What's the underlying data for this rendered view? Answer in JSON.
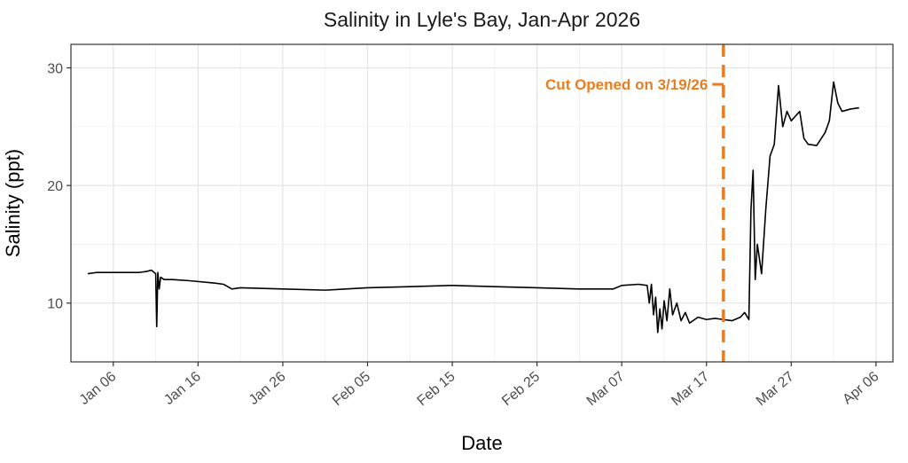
{
  "chart_data": {
    "type": "line",
    "title": "Salinity in Lyle's Bay, Jan-Apr 2026",
    "xlabel": "Date",
    "ylabel": "Salinity (ppt)",
    "x_axis": "date",
    "xlim": [
      "2026-01-01",
      "2026-04-08"
    ],
    "ylim": [
      5,
      32
    ],
    "x_ticks": [
      {
        "date": "2026-01-06",
        "label": "Jan 06"
      },
      {
        "date": "2026-01-16",
        "label": "Jan 16"
      },
      {
        "date": "2026-01-26",
        "label": "Jan 26"
      },
      {
        "date": "2026-02-05",
        "label": "Feb 05"
      },
      {
        "date": "2026-02-15",
        "label": "Feb 15"
      },
      {
        "date": "2026-02-25",
        "label": "Feb 25"
      },
      {
        "date": "2026-03-07",
        "label": "Mar 07"
      },
      {
        "date": "2026-03-17",
        "label": "Mar 17"
      },
      {
        "date": "2026-03-27",
        "label": "Mar 27"
      },
      {
        "date": "2026-04-06",
        "label": "Apr 06"
      }
    ],
    "y_ticks": [
      10,
      20,
      30
    ],
    "grid": true,
    "line_color": "#000000",
    "series": [
      {
        "points": [
          [
            "2026-01-03",
            12.5
          ],
          [
            "2026-01-04",
            12.6
          ],
          [
            "2026-01-06",
            12.6
          ],
          [
            "2026-01-08",
            12.6
          ],
          [
            "2026-01-09",
            12.6
          ],
          [
            "2026-01-10",
            12.7
          ],
          [
            "2026-01-10 12:00",
            12.8
          ],
          [
            "2026-01-11",
            12.5
          ],
          [
            "2026-01-11 03:00",
            8.0
          ],
          [
            "2026-01-11 06:00",
            12.6
          ],
          [
            "2026-01-11 10:00",
            11.2
          ],
          [
            "2026-01-11 14:00",
            12.2
          ],
          [
            "2026-01-12",
            12.0
          ],
          [
            "2026-01-13",
            12.0
          ],
          [
            "2026-01-15",
            11.9
          ],
          [
            "2026-01-18",
            11.7
          ],
          [
            "2026-01-19",
            11.6
          ],
          [
            "2026-01-20",
            11.2
          ],
          [
            "2026-01-21",
            11.3
          ],
          [
            "2026-01-26",
            11.2
          ],
          [
            "2026-01-31",
            11.1
          ],
          [
            "2026-02-05",
            11.3
          ],
          [
            "2026-02-10",
            11.4
          ],
          [
            "2026-02-15",
            11.5
          ],
          [
            "2026-02-20",
            11.4
          ],
          [
            "2026-02-25",
            11.3
          ],
          [
            "2026-03-02",
            11.2
          ],
          [
            "2026-03-06",
            11.2
          ],
          [
            "2026-03-07",
            11.5
          ],
          [
            "2026-03-09",
            11.6
          ],
          [
            "2026-03-10",
            11.5
          ],
          [
            "2026-03-10 06:00",
            10.0
          ],
          [
            "2026-03-10 12:00",
            11.6
          ],
          [
            "2026-03-10 18:00",
            9.0
          ],
          [
            "2026-03-11",
            10.5
          ],
          [
            "2026-03-11 06:00",
            7.5
          ],
          [
            "2026-03-11 12:00",
            9.5
          ],
          [
            "2026-03-11 18:00",
            7.8
          ],
          [
            "2026-03-12",
            10.2
          ],
          [
            "2026-03-12 08:00",
            8.5
          ],
          [
            "2026-03-12 16:00",
            11.2
          ],
          [
            "2026-03-13",
            9.0
          ],
          [
            "2026-03-13 12:00",
            10.0
          ],
          [
            "2026-03-14",
            8.5
          ],
          [
            "2026-03-14 12:00",
            9.2
          ],
          [
            "2026-03-15",
            8.3
          ],
          [
            "2026-03-16",
            8.8
          ],
          [
            "2026-03-17",
            8.6
          ],
          [
            "2026-03-18",
            8.7
          ],
          [
            "2026-03-19",
            8.6
          ],
          [
            "2026-03-20",
            8.5
          ],
          [
            "2026-03-21",
            8.8
          ],
          [
            "2026-03-21 12:00",
            9.2
          ],
          [
            "2026-03-22",
            8.6
          ],
          [
            "2026-03-22 06:00",
            18.0
          ],
          [
            "2026-03-22 12:00",
            21.3
          ],
          [
            "2026-03-22 18:00",
            12.0
          ],
          [
            "2026-03-23",
            15.0
          ],
          [
            "2026-03-23 12:00",
            12.5
          ],
          [
            "2026-03-24",
            18.0
          ],
          [
            "2026-03-24 12:00",
            22.5
          ],
          [
            "2026-03-25",
            23.5
          ],
          [
            "2026-03-25 12:00",
            28.5
          ],
          [
            "2026-03-26",
            25.0
          ],
          [
            "2026-03-26 12:00",
            26.3
          ],
          [
            "2026-03-27",
            25.5
          ],
          [
            "2026-03-28",
            26.3
          ],
          [
            "2026-03-28 12:00",
            24.0
          ],
          [
            "2026-03-29",
            23.5
          ],
          [
            "2026-03-30",
            23.4
          ],
          [
            "2026-03-31",
            24.5
          ],
          [
            "2026-03-31 12:00",
            25.5
          ],
          [
            "2026-04-01",
            28.8
          ],
          [
            "2026-04-01 12:00",
            27.0
          ],
          [
            "2026-04-02",
            26.3
          ],
          [
            "2026-04-03",
            26.5
          ],
          [
            "2026-04-04",
            26.6
          ]
        ]
      }
    ],
    "annotations": [
      {
        "type": "vline",
        "date": "2026-03-19",
        "color": "#e67e22",
        "style": "dashed"
      },
      {
        "type": "text",
        "text": "Cut Opened on 3/19/26",
        "date": "2026-03-18",
        "y": 28.6,
        "color": "#e67e22",
        "with_segment": true
      }
    ]
  }
}
